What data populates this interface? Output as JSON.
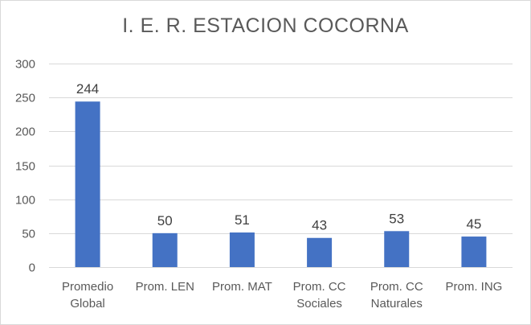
{
  "chart_data": {
    "type": "bar",
    "title": "I. E. R. ESTACION COCORNA",
    "xlabel": "",
    "ylabel": "",
    "categories": [
      [
        "Promedio",
        "Global"
      ],
      [
        "Prom. LEN"
      ],
      [
        "Prom. MAT"
      ],
      [
        "Prom. CC",
        "Sociales"
      ],
      [
        "Prom. CC",
        "Naturales"
      ],
      [
        "Prom. ING"
      ]
    ],
    "values": [
      244,
      50,
      51,
      43,
      53,
      45
    ],
    "data_labels": [
      "244",
      "50",
      "51",
      "43",
      "53",
      "45"
    ],
    "ylim": [
      0,
      300
    ],
    "yticks": [
      0,
      50,
      100,
      150,
      200,
      250,
      300
    ],
    "ytick_labels": [
      "0",
      "50",
      "100",
      "150",
      "200",
      "250",
      "300"
    ],
    "grid": true,
    "legend": "none",
    "bar_color": "#4472c4",
    "grid_color": "#d9d9d9"
  }
}
